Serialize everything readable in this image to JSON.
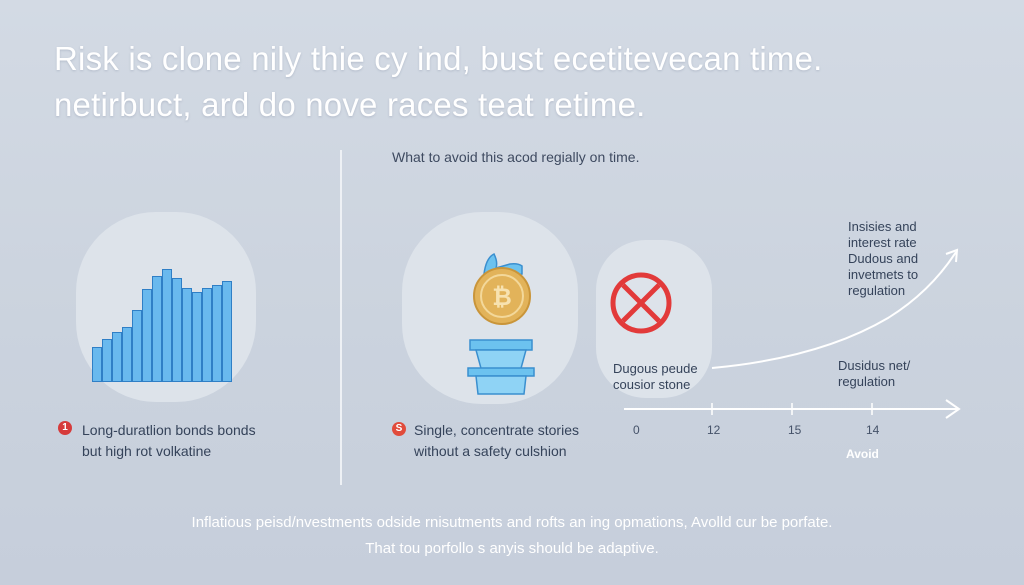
{
  "headline": {
    "line1": "Risk is clone nily thie  cy ind, bust ecetitevecan time.",
    "line2": "netirbuct, ard do nove races teat retime."
  },
  "subtitle": "What to avoid this acod regially on time.",
  "items": [
    {
      "badge": "1",
      "line1": "Long-duratlion bonds bonds",
      "line2": "but high rot volkatine"
    },
    {
      "badge": "S",
      "line1": "Single, concentrate stories",
      "line2": "without a safety culshion"
    }
  ],
  "bar_levels": [
    0.25,
    0.31,
    0.36,
    0.4,
    0.53,
    0.69,
    0.79,
    0.84,
    0.77,
    0.7,
    0.67,
    0.7,
    0.72,
    0.75
  ],
  "crypto_symbol": "₿",
  "avoid_panel": {
    "caption_line1": "Dugous peude",
    "caption_line2": "cousior stone"
  },
  "right_annotations": {
    "upper_1": "Insisies and",
    "upper_2": "interest rate",
    "upper_3": "Dudous and",
    "upper_4": "invetmets to",
    "upper_5": "regulation",
    "lower_1": "Dusidus net/",
    "lower_2": "regulation"
  },
  "axis": {
    "ticks": [
      "0",
      "12",
      "15",
      "14"
    ],
    "label": "Avoid"
  },
  "footer": {
    "line1": "Inflatious peisd/nvestments odside rnisutments and rofts an ing opmations, Avolld cur be porfate.",
    "line2": "That tou porfollo s anyis should be adaptive."
  },
  "colors": {
    "bar_fill": "#69b9ee",
    "bar_stroke": "#2f7fc6",
    "warning_red": "#d63b3b",
    "coin_gold": "#e2b35a",
    "bucket_blue": "#6cc2ef"
  },
  "icons": [
    "bar-chart-icon",
    "hand-icon",
    "bitcoin-coin-icon",
    "bucket-icon",
    "prohibited-icon",
    "trend-arrow-icon"
  ]
}
